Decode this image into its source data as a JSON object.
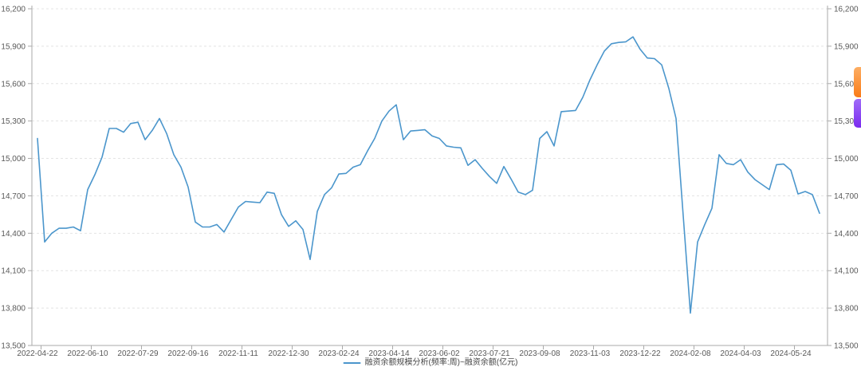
{
  "chart_data": {
    "type": "line",
    "title": "",
    "legend_position": "bottom-center",
    "grid": "horizontal-dashed",
    "dual_y_axis": true,
    "ylim": [
      13500,
      16200
    ],
    "y_ticks": [
      13500,
      13800,
      14100,
      14400,
      14700,
      15000,
      15300,
      15600,
      15900,
      16200
    ],
    "y_tick_labels": [
      "13,500",
      "13,800",
      "14,100",
      "14,400",
      "14,700",
      "15,000",
      "15,300",
      "15,600",
      "15,900",
      "16,200"
    ],
    "x_tick_labels": [
      "2022-04-22",
      "2022-06-10",
      "2022-07-29",
      "2022-09-16",
      "2022-11-11",
      "2022-12-30",
      "2023-02-24",
      "2023-04-14",
      "2023-06-02",
      "2023-07-21",
      "2023-09-08",
      "2023-11-03",
      "2023-12-22",
      "2024-02-08",
      "2024-04-03",
      "2024-05-24"
    ],
    "x_tick_indices": [
      0,
      7,
      14,
      21,
      28,
      35,
      42,
      49,
      56,
      63,
      70,
      77,
      84,
      91,
      98,
      105
    ],
    "x_unit": "week",
    "series": [
      {
        "name": "融资余额规模分析(频率:周)~融资余额(亿元)",
        "color": "#4b96cc",
        "values": [
          15160,
          14330,
          14400,
          14440,
          14440,
          14450,
          14420,
          14750,
          14870,
          15010,
          15240,
          15240,
          15210,
          15280,
          15290,
          15150,
          15225,
          15320,
          15200,
          15030,
          14930,
          14770,
          14490,
          14450,
          14450,
          14470,
          14410,
          14510,
          14610,
          14655,
          14650,
          14645,
          14730,
          14720,
          14550,
          14455,
          14500,
          14430,
          14190,
          14575,
          14710,
          14765,
          14875,
          14880,
          14930,
          14950,
          15060,
          15160,
          15300,
          15380,
          15430,
          15150,
          15220,
          15225,
          15230,
          15180,
          15160,
          15100,
          15090,
          15085,
          14945,
          14990,
          14920,
          14855,
          14800,
          14935,
          14835,
          14730,
          14710,
          14745,
          15160,
          15215,
          15100,
          15375,
          15380,
          15385,
          15490,
          15630,
          15750,
          15860,
          15920,
          15930,
          15935,
          15975,
          15875,
          15805,
          15800,
          15750,
          15560,
          15320,
          14540,
          13760,
          14330,
          14470,
          14600,
          15030,
          14960,
          14950,
          14990,
          14890,
          14830,
          14790,
          14750,
          14950,
          14955,
          14905,
          14715,
          14735,
          14710,
          14560
        ]
      }
    ],
    "style": {
      "label_color": "#595959",
      "grid_color": "#e4e4e4",
      "axis_line_color": "#aaaaaa",
      "background": "#ffffff"
    }
  },
  "side_buttons": {
    "orange_color": "#f97b17",
    "purple_color": "#7a2bef"
  }
}
